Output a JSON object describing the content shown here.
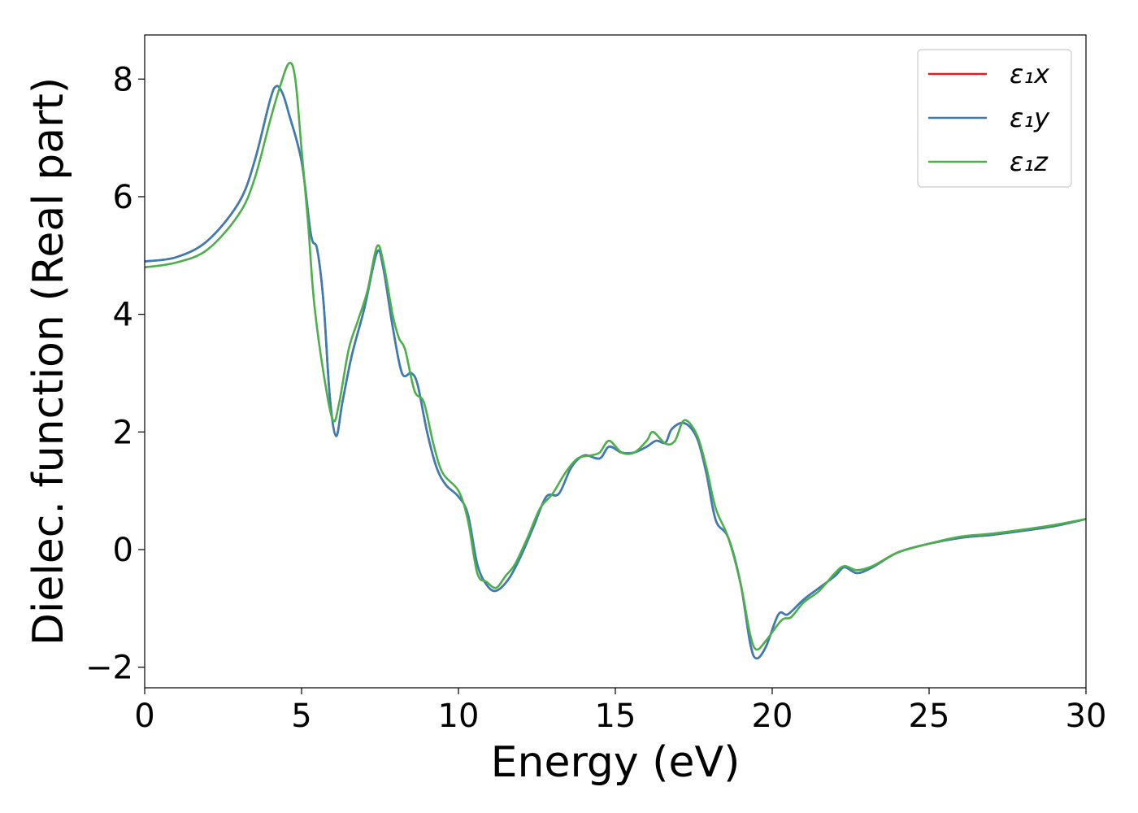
{
  "chart_data": {
    "type": "line",
    "title": "",
    "xlabel": "Energy (eV)",
    "ylabel": "Dielec. function (Real part)",
    "xlim": [
      0,
      30
    ],
    "ylim": [
      -2.35,
      8.75
    ],
    "xticks": [
      0,
      5,
      10,
      15,
      20,
      25,
      30
    ],
    "xtick_labels": [
      "0",
      "5",
      "10",
      "15",
      "20",
      "25",
      "30"
    ],
    "yticks": [
      -2,
      0,
      2,
      4,
      6,
      8
    ],
    "ytick_labels": [
      "−2",
      "0",
      "2",
      "4",
      "6",
      "8"
    ],
    "grid": false,
    "legend_position": "top-right",
    "series": [
      {
        "name": "x",
        "legend_label": "ε₁x",
        "color": "#e41a1c",
        "points": [
          [
            0,
            4.9
          ],
          [
            1,
            4.97
          ],
          [
            2,
            5.25
          ],
          [
            3,
            5.9
          ],
          [
            3.5,
            6.6
          ],
          [
            4,
            7.65
          ],
          [
            4.2,
            7.88
          ],
          [
            4.4,
            7.75
          ],
          [
            4.6,
            7.4
          ],
          [
            5,
            6.6
          ],
          [
            5.3,
            5.35
          ],
          [
            5.5,
            5.1
          ],
          [
            5.7,
            4.2
          ],
          [
            5.9,
            2.6
          ],
          [
            6.1,
            1.93
          ],
          [
            6.3,
            2.5
          ],
          [
            6.6,
            3.3
          ],
          [
            7,
            4.1
          ],
          [
            7.4,
            5.05
          ],
          [
            7.6,
            4.8
          ],
          [
            7.9,
            3.8
          ],
          [
            8.2,
            3.0
          ],
          [
            8.5,
            3.0
          ],
          [
            8.7,
            2.8
          ],
          [
            9,
            2.0
          ],
          [
            9.3,
            1.4
          ],
          [
            9.6,
            1.1
          ],
          [
            10,
            0.9
          ],
          [
            10.3,
            0.6
          ],
          [
            10.6,
            -0.25
          ],
          [
            10.9,
            -0.6
          ],
          [
            11.2,
            -0.7
          ],
          [
            11.6,
            -0.5
          ],
          [
            12,
            -0.1
          ],
          [
            12.4,
            0.4
          ],
          [
            12.8,
            0.9
          ],
          [
            13.2,
            0.95
          ],
          [
            13.6,
            1.4
          ],
          [
            14,
            1.6
          ],
          [
            14.5,
            1.55
          ],
          [
            14.8,
            1.75
          ],
          [
            15.2,
            1.65
          ],
          [
            15.6,
            1.65
          ],
          [
            16,
            1.75
          ],
          [
            16.3,
            1.85
          ],
          [
            16.6,
            1.82
          ],
          [
            16.8,
            2.05
          ],
          [
            17.2,
            2.15
          ],
          [
            17.6,
            1.9
          ],
          [
            17.9,
            1.3
          ],
          [
            18.2,
            0.5
          ],
          [
            18.6,
            0.2
          ],
          [
            19,
            -0.6
          ],
          [
            19.3,
            -1.6
          ],
          [
            19.5,
            -1.85
          ],
          [
            19.8,
            -1.65
          ],
          [
            20.2,
            -1.1
          ],
          [
            20.5,
            -1.1
          ],
          [
            21,
            -0.85
          ],
          [
            21.5,
            -0.65
          ],
          [
            22,
            -0.45
          ],
          [
            22.3,
            -0.3
          ],
          [
            22.7,
            -0.4
          ],
          [
            23.2,
            -0.3
          ],
          [
            24,
            -0.05
          ],
          [
            25,
            0.1
          ],
          [
            26,
            0.2
          ],
          [
            27,
            0.25
          ],
          [
            28,
            0.32
          ],
          [
            29,
            0.4
          ],
          [
            30,
            0.52
          ]
        ]
      },
      {
        "name": "y",
        "legend_label": "ε₁y",
        "color": "#377eb8",
        "points": [
          [
            0,
            4.9
          ],
          [
            1,
            4.97
          ],
          [
            2,
            5.25
          ],
          [
            3,
            5.9
          ],
          [
            3.5,
            6.6
          ],
          [
            4,
            7.65
          ],
          [
            4.2,
            7.88
          ],
          [
            4.4,
            7.75
          ],
          [
            4.6,
            7.4
          ],
          [
            5,
            6.6
          ],
          [
            5.3,
            5.35
          ],
          [
            5.5,
            5.1
          ],
          [
            5.7,
            4.2
          ],
          [
            5.9,
            2.6
          ],
          [
            6.1,
            1.93
          ],
          [
            6.3,
            2.5
          ],
          [
            6.6,
            3.3
          ],
          [
            7,
            4.1
          ],
          [
            7.4,
            5.05
          ],
          [
            7.6,
            4.8
          ],
          [
            7.9,
            3.8
          ],
          [
            8.2,
            3.0
          ],
          [
            8.5,
            3.0
          ],
          [
            8.7,
            2.8
          ],
          [
            9,
            2.0
          ],
          [
            9.3,
            1.4
          ],
          [
            9.6,
            1.1
          ],
          [
            10,
            0.9
          ],
          [
            10.3,
            0.6
          ],
          [
            10.6,
            -0.25
          ],
          [
            10.9,
            -0.6
          ],
          [
            11.2,
            -0.7
          ],
          [
            11.6,
            -0.5
          ],
          [
            12,
            -0.1
          ],
          [
            12.4,
            0.4
          ],
          [
            12.8,
            0.9
          ],
          [
            13.2,
            0.95
          ],
          [
            13.6,
            1.4
          ],
          [
            14,
            1.6
          ],
          [
            14.5,
            1.55
          ],
          [
            14.8,
            1.75
          ],
          [
            15.2,
            1.65
          ],
          [
            15.6,
            1.65
          ],
          [
            16,
            1.75
          ],
          [
            16.3,
            1.85
          ],
          [
            16.6,
            1.82
          ],
          [
            16.8,
            2.05
          ],
          [
            17.2,
            2.15
          ],
          [
            17.6,
            1.9
          ],
          [
            17.9,
            1.3
          ],
          [
            18.2,
            0.5
          ],
          [
            18.6,
            0.2
          ],
          [
            19,
            -0.6
          ],
          [
            19.3,
            -1.6
          ],
          [
            19.5,
            -1.85
          ],
          [
            19.8,
            -1.65
          ],
          [
            20.2,
            -1.1
          ],
          [
            20.5,
            -1.1
          ],
          [
            21,
            -0.85
          ],
          [
            21.5,
            -0.65
          ],
          [
            22,
            -0.45
          ],
          [
            22.3,
            -0.3
          ],
          [
            22.7,
            -0.4
          ],
          [
            23.2,
            -0.3
          ],
          [
            24,
            -0.05
          ],
          [
            25,
            0.1
          ],
          [
            26,
            0.2
          ],
          [
            27,
            0.25
          ],
          [
            28,
            0.32
          ],
          [
            29,
            0.4
          ],
          [
            30,
            0.52
          ]
        ]
      },
      {
        "name": "z",
        "legend_label": "ε₁z",
        "color": "#4daf4a",
        "points": [
          [
            0,
            4.8
          ],
          [
            1,
            4.88
          ],
          [
            2,
            5.1
          ],
          [
            3,
            5.7
          ],
          [
            3.5,
            6.3
          ],
          [
            4,
            7.3
          ],
          [
            4.3,
            7.85
          ],
          [
            4.6,
            8.27
          ],
          [
            4.8,
            8.0
          ],
          [
            5,
            6.8
          ],
          [
            5.2,
            5.6
          ],
          [
            5.4,
            4.2
          ],
          [
            5.7,
            3.0
          ],
          [
            6,
            2.2
          ],
          [
            6.2,
            2.5
          ],
          [
            6.5,
            3.4
          ],
          [
            6.8,
            3.9
          ],
          [
            7.1,
            4.4
          ],
          [
            7.4,
            5.15
          ],
          [
            7.6,
            4.9
          ],
          [
            7.9,
            4.0
          ],
          [
            8.1,
            3.6
          ],
          [
            8.3,
            3.4
          ],
          [
            8.6,
            2.7
          ],
          [
            8.9,
            2.5
          ],
          [
            9.2,
            1.8
          ],
          [
            9.5,
            1.3
          ],
          [
            10,
            1.0
          ],
          [
            10.3,
            0.5
          ],
          [
            10.6,
            -0.4
          ],
          [
            10.9,
            -0.55
          ],
          [
            11.2,
            -0.65
          ],
          [
            11.5,
            -0.45
          ],
          [
            11.8,
            -0.25
          ],
          [
            12.2,
            0.2
          ],
          [
            12.6,
            0.7
          ],
          [
            13,
            0.95
          ],
          [
            13.4,
            1.3
          ],
          [
            13.8,
            1.55
          ],
          [
            14.2,
            1.6
          ],
          [
            14.5,
            1.65
          ],
          [
            14.8,
            1.85
          ],
          [
            15.2,
            1.65
          ],
          [
            15.6,
            1.65
          ],
          [
            16,
            1.85
          ],
          [
            16.2,
            2.0
          ],
          [
            16.6,
            1.8
          ],
          [
            16.9,
            1.85
          ],
          [
            17.2,
            2.2
          ],
          [
            17.6,
            1.95
          ],
          [
            17.9,
            1.4
          ],
          [
            18.2,
            0.7
          ],
          [
            18.6,
            0.2
          ],
          [
            19,
            -0.6
          ],
          [
            19.3,
            -1.45
          ],
          [
            19.5,
            -1.7
          ],
          [
            19.8,
            -1.55
          ],
          [
            20.3,
            -1.2
          ],
          [
            20.6,
            -1.15
          ],
          [
            21,
            -0.9
          ],
          [
            21.5,
            -0.7
          ],
          [
            22,
            -0.4
          ],
          [
            22.3,
            -0.28
          ],
          [
            22.7,
            -0.35
          ],
          [
            23.2,
            -0.28
          ],
          [
            24,
            -0.05
          ],
          [
            25,
            0.1
          ],
          [
            26,
            0.22
          ],
          [
            27,
            0.27
          ],
          [
            28,
            0.34
          ],
          [
            29,
            0.42
          ],
          [
            30,
            0.52
          ]
        ]
      }
    ]
  }
}
